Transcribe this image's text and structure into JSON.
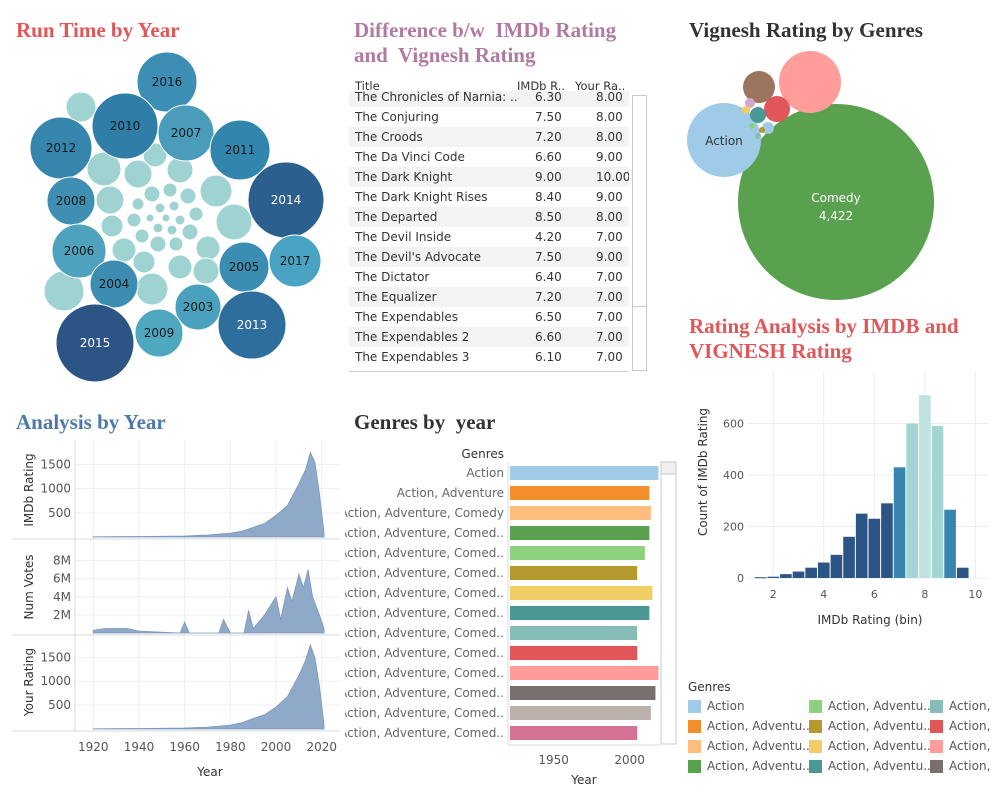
{
  "titles": {
    "run_time": "Run Time by Year",
    "difference_line1": "Difference b/w  IMDb Rating",
    "difference_line2": "and  Vignesh Rating",
    "vignesh_genres": "Vignesh Rating by Genres",
    "rating_analysis_line1": "Rating Analysis by IMDB and",
    "rating_analysis_line2": "VIGNESH Rating",
    "analysis_year": "Analysis by Year",
    "genres_year": "Genres by  year"
  },
  "colors": {
    "red_title": "#e15759",
    "purple_title": "#b07aa1",
    "blue_title": "#4e79a7",
    "dark_title": "#333333",
    "area_fill": "#8fa9c9",
    "comedy": "#59a14f",
    "action": "#a0cbe8"
  },
  "table": {
    "columns": [
      "Title",
      "IMDb R..",
      "Your Ra.."
    ],
    "rows": [
      {
        "title": "The Chronicles of Narnia: ..",
        "imdb": "6.30",
        "yours": "8.00"
      },
      {
        "title": "The Conjuring",
        "imdb": "7.50",
        "yours": "8.00"
      },
      {
        "title": "The Croods",
        "imdb": "7.20",
        "yours": "8.00"
      },
      {
        "title": "The Da Vinci Code",
        "imdb": "6.60",
        "yours": "9.00"
      },
      {
        "title": "The Dark Knight",
        "imdb": "9.00",
        "yours": "10.00"
      },
      {
        "title": "The Dark Knight Rises",
        "imdb": "8.40",
        "yours": "9.00"
      },
      {
        "title": "The Departed",
        "imdb": "8.50",
        "yours": "8.00"
      },
      {
        "title": "The Devil Inside",
        "imdb": "4.20",
        "yours": "7.00"
      },
      {
        "title": "The Devil's Advocate",
        "imdb": "7.50",
        "yours": "9.00"
      },
      {
        "title": "The Dictator",
        "imdb": "6.40",
        "yours": "7.00"
      },
      {
        "title": "The Equalizer",
        "imdb": "7.20",
        "yours": "7.00"
      },
      {
        "title": "The Expendables",
        "imdb": "6.50",
        "yours": "7.00"
      },
      {
        "title": "The Expendables 2",
        "imdb": "6.60",
        "yours": "7.00"
      },
      {
        "title": "The Expendables 3",
        "imdb": "6.10",
        "yours": "7.00"
      }
    ]
  },
  "legend": {
    "title": "Genres",
    "items": [
      {
        "label": "Action",
        "color": "#a0cbe8"
      },
      {
        "label": "Action, Adventu..",
        "color": "#8cd17d"
      },
      {
        "label": "Action,",
        "color": "#86bcb6"
      },
      {
        "label": "Action, Adventu..",
        "color": "#f28e2b"
      },
      {
        "label": "Action, Adventu..",
        "color": "#b6992d"
      },
      {
        "label": "Action,",
        "color": "#e15759"
      },
      {
        "label": "Action, Adventu..",
        "color": "#ffbe7d"
      },
      {
        "label": "Action, Adventu..",
        "color": "#f1ce63"
      },
      {
        "label": "Action,",
        "color": "#ff9d9a"
      },
      {
        "label": "Action, Adventu..",
        "color": "#59a14f"
      },
      {
        "label": "Action, Adventu..",
        "color": "#499894"
      },
      {
        "label": "Action,",
        "color": "#79706e"
      }
    ]
  },
  "chart_data": [
    {
      "type": "bubble",
      "title": "Run Time by Year",
      "labels": [
        "2016",
        "2010",
        "2007",
        "2012",
        "2011",
        "2008",
        "2014",
        "2006",
        "2005",
        "2017",
        "2004",
        "2003",
        "2013",
        "2015",
        "2009"
      ],
      "colors": [
        "#3d8eb4",
        "#2f7ea8",
        "#4a9cba",
        "#3585ac",
        "#3286ad",
        "#3f8fb3",
        "#2b5f8e",
        "#4fa2bd",
        "#3c8db2",
        "#4aa3c3",
        "#3d8db2",
        "#4aa1bd",
        "#2e6e9d",
        "#2c5585",
        "#4fa7c0"
      ]
    },
    {
      "type": "bubble",
      "title": "Vignesh Rating by Genres",
      "labels": [
        "Action",
        "Comedy"
      ],
      "values": [
        null,
        4422
      ],
      "value_labels": [
        "",
        "4,422"
      ]
    },
    {
      "type": "bar",
      "title": "Rating Analysis by IMDB and VIGNESH Rating",
      "xlabel": "IMDb Rating (bin)",
      "ylabel": "Count of IMDb Rating",
      "x": [
        1.5,
        2,
        2.5,
        3,
        3.5,
        4,
        4.5,
        5,
        5.5,
        6,
        6.5,
        7,
        7.5,
        8,
        8.5,
        9,
        9.5
      ],
      "values": [
        3,
        5,
        15,
        25,
        40,
        60,
        90,
        160,
        250,
        230,
        290,
        430,
        600,
        710,
        590,
        265,
        40
      ],
      "colors": [
        "#2c5585",
        "#2c5585",
        "#2c5585",
        "#2c5585",
        "#2c5585",
        "#2c5585",
        "#2c5585",
        "#2c5585",
        "#2c5585",
        "#2c5585",
        "#2c5585",
        "#3a85ad",
        "#a3d6d2",
        "#bfe3e0",
        "#a3d6d2",
        "#3a85ad",
        "#2c5585"
      ],
      "xticks": [
        2,
        4,
        6,
        8,
        10
      ],
      "yticks": [
        0,
        200,
        400,
        600
      ],
      "xlim": [
        1,
        10.5
      ],
      "ylim": [
        0,
        800
      ]
    },
    {
      "type": "area",
      "title": "Analysis by Year",
      "xlabel": "Year",
      "xticks": [
        1920,
        1940,
        1960,
        1980,
        2000,
        2020
      ],
      "xlim": [
        1912,
        2028
      ],
      "series": [
        {
          "name": "IMDb Rating",
          "yticks": [
            500,
            1000,
            1500
          ],
          "yticklabels": [
            "500",
            "1000",
            "1500"
          ],
          "ylim": [
            0,
            1800
          ],
          "points": [
            [
              1920,
              5
            ],
            [
              1940,
              10
            ],
            [
              1960,
              20
            ],
            [
              1970,
              40
            ],
            [
              1980,
              80
            ],
            [
              1985,
              120
            ],
            [
              1990,
              200
            ],
            [
              1995,
              280
            ],
            [
              2000,
              450
            ],
            [
              2005,
              650
            ],
            [
              2010,
              1100
            ],
            [
              2013,
              1400
            ],
            [
              2015,
              1750
            ],
            [
              2017,
              1550
            ],
            [
              2019,
              900
            ],
            [
              2021,
              100
            ]
          ]
        },
        {
          "name": "Num Votes",
          "yticks": [
            2000000,
            4000000,
            6000000,
            8000000
          ],
          "yticklabels": [
            "2M",
            "4M",
            "6M",
            "8M"
          ],
          "ylim": [
            0,
            9500000
          ],
          "points": [
            [
              1920,
              300000
            ],
            [
              1925,
              500000
            ],
            [
              1935,
              500000
            ],
            [
              1940,
              200000
            ],
            [
              1958,
              0
            ],
            [
              1960,
              1200000
            ],
            [
              1962,
              0
            ],
            [
              1975,
              0
            ],
            [
              1977,
              1500000
            ],
            [
              1980,
              0
            ],
            [
              1986,
              0
            ],
            [
              1988,
              2500000
            ],
            [
              1990,
              500000
            ],
            [
              1995,
              2000000
            ],
            [
              2000,
              4000000
            ],
            [
              2002,
              1500000
            ],
            [
              2005,
              5000000
            ],
            [
              2007,
              3500000
            ],
            [
              2010,
              6500000
            ],
            [
              2012,
              5000000
            ],
            [
              2014,
              7000000
            ],
            [
              2016,
              4000000
            ],
            [
              2019,
              2000000
            ],
            [
              2021,
              500000
            ]
          ]
        },
        {
          "name": "Your Rating",
          "yticks": [
            500,
            1000,
            1500
          ],
          "yticklabels": [
            "500",
            "1000",
            "1500"
          ],
          "ylim": [
            0,
            1800
          ],
          "points": [
            [
              1920,
              5
            ],
            [
              1940,
              10
            ],
            [
              1960,
              20
            ],
            [
              1970,
              40
            ],
            [
              1980,
              80
            ],
            [
              1985,
              130
            ],
            [
              1990,
              220
            ],
            [
              1995,
              300
            ],
            [
              2000,
              460
            ],
            [
              2005,
              680
            ],
            [
              2010,
              1120
            ],
            [
              2013,
              1450
            ],
            [
              2015,
              1760
            ],
            [
              2017,
              1500
            ],
            [
              2019,
              900
            ],
            [
              2021,
              100
            ]
          ]
        }
      ]
    },
    {
      "type": "bar",
      "orientation": "horizontal",
      "title": "Genres by  year",
      "xlabel": "Year",
      "ylabel": "Genres",
      "categories": [
        "Action",
        "Action, Adventure",
        "Action, Adventure, Comedy",
        "Action, Adventure, Comed..",
        "Action, Adventure, Comed..",
        "Action, Adventure, Comed..",
        "Action, Adventure, Comed..",
        "Action, Adventure, Comed..",
        "Action, Adventure, Comed..",
        "Action, Adventure, Comed..",
        "Action, Adventure, Comed..",
        "Action, Adventure, Comed..",
        "Action, Adventure, Comed..",
        "Action, Adventure, Comed.."
      ],
      "values": [
        2019,
        2013,
        2014,
        2013,
        2010,
        2005,
        2015,
        2013,
        2005,
        2005,
        2019,
        2017,
        2014,
        2005
      ],
      "colors": [
        "#a0cbe8",
        "#f28e2b",
        "#ffbe7d",
        "#59a14f",
        "#8cd17d",
        "#b6992d",
        "#f1ce63",
        "#499894",
        "#86bcb6",
        "#e15759",
        "#ff9d9a",
        "#79706e",
        "#bab0ac",
        "#d37295"
      ],
      "xticks": [
        1950,
        2000
      ],
      "xlim": [
        1920,
        2020
      ]
    }
  ]
}
